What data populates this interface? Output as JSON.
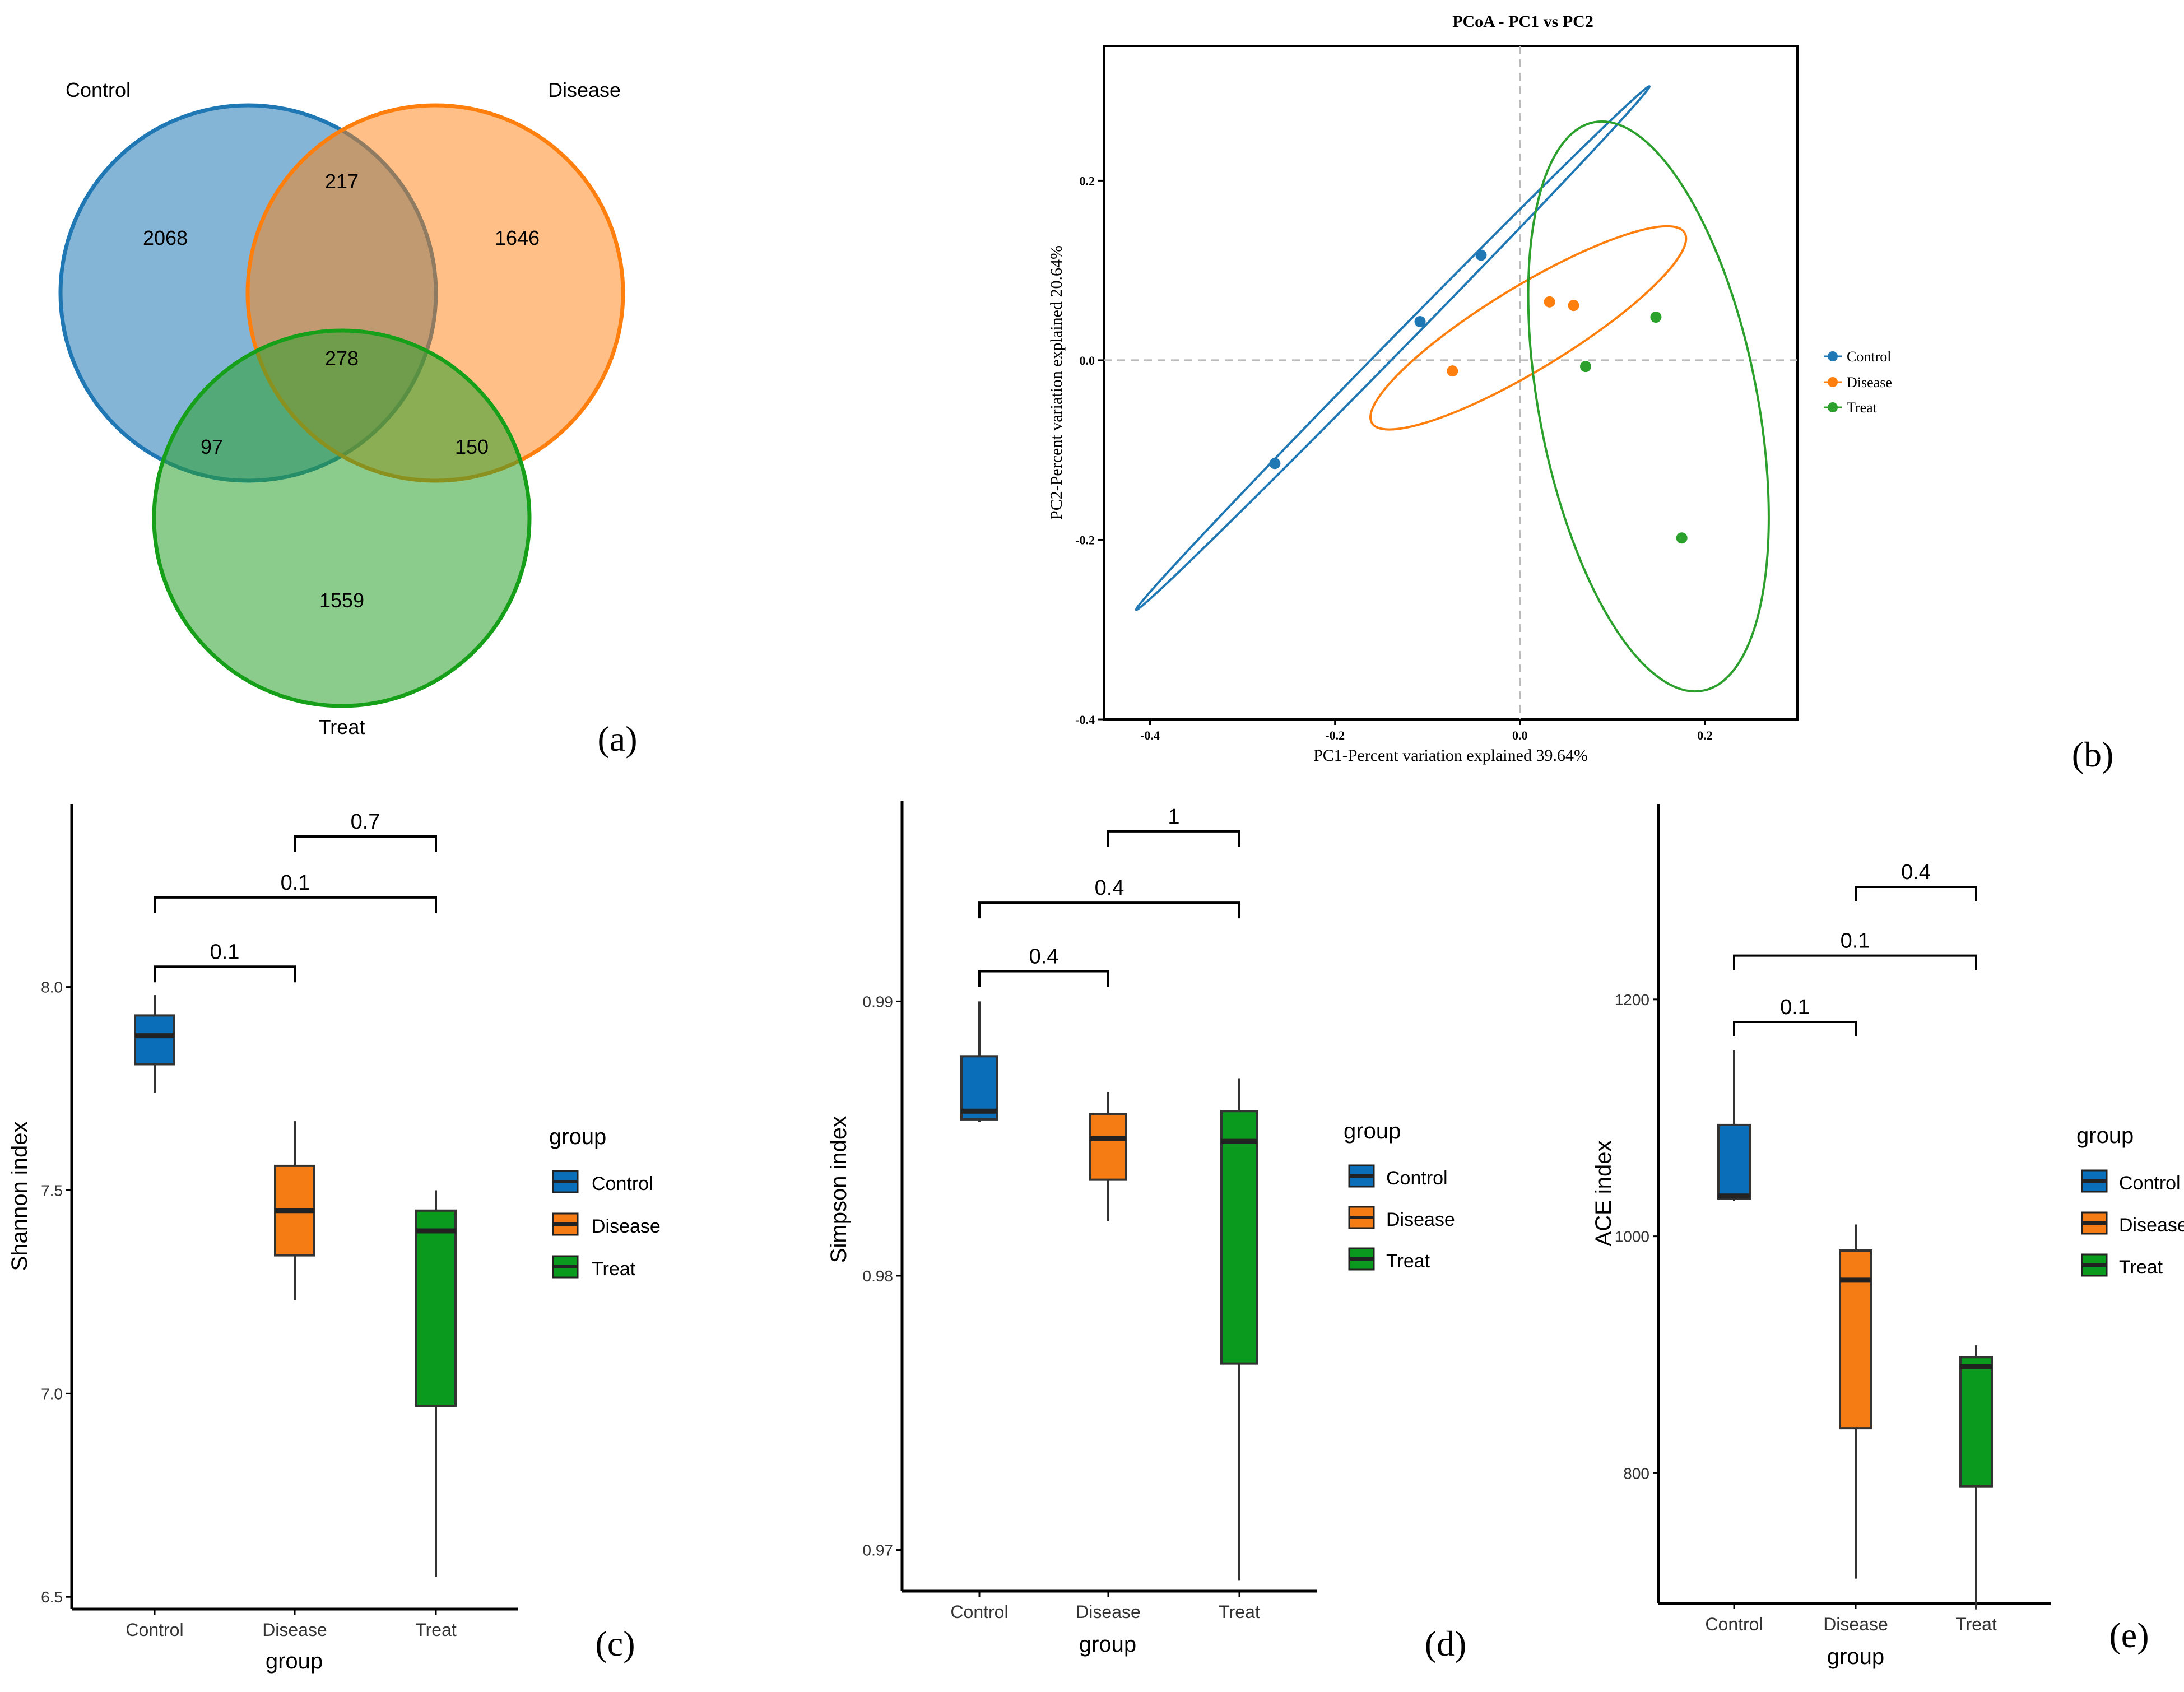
{
  "colors": {
    "control": "#1f77b4",
    "disease": "#ff7f0e",
    "treat": "#2ca02c",
    "box_control": "#0a6fb8",
    "box_disease": "#f57c14",
    "box_treat": "#0a9a1e"
  },
  "panel_labels": [
    "(a)",
    "(b)",
    "(c)",
    "(d)",
    "(e)"
  ],
  "chart_data": [
    {
      "type": "venn",
      "panel": "(a)",
      "sets": [
        "Control",
        "Disease",
        "Treat"
      ],
      "regions": {
        "control_only": 2068,
        "disease_only": 1646,
        "treat_only": 1559,
        "control_disease": 217,
        "control_treat": 97,
        "disease_treat": 150,
        "all_three": 278
      }
    },
    {
      "type": "scatter",
      "panel": "(b)",
      "title": "PCoA - PC1 vs PC2",
      "xlabel": "PC1-Percent variation explained 39.64%",
      "ylabel": "PC2-Percent variation explained 20.64%",
      "xlim": [
        -0.45,
        0.3
      ],
      "ylim": [
        -0.4,
        0.35
      ],
      "xticks": [
        -0.4,
        -0.2,
        0.0,
        0.2
      ],
      "yticks": [
        -0.4,
        -0.2,
        0.0,
        0.2
      ],
      "xtick_labels": [
        "-0.4",
        "-0.2",
        "0.0",
        "0.2"
      ],
      "ytick_labels": [
        "-0.4",
        "-0.2",
        "0.0",
        "0.2"
      ],
      "legend": [
        "Control",
        "Disease",
        "Treat"
      ],
      "series": [
        {
          "name": "Control",
          "points": [
            [
              -0.265,
              -0.115
            ],
            [
              -0.108,
              0.043
            ],
            [
              -0.042,
              0.117
            ]
          ]
        },
        {
          "name": "Disease",
          "points": [
            [
              -0.073,
              -0.012
            ],
            [
              0.032,
              0.065
            ],
            [
              0.058,
              0.061
            ]
          ]
        },
        {
          "name": "Treat",
          "points": [
            [
              0.071,
              -0.007
            ],
            [
              0.147,
              0.048
            ],
            [
              0.175,
              -0.198
            ]
          ]
        }
      ],
      "ellipses": [
        {
          "name": "Control",
          "from": [
            -0.415,
            -0.278
          ],
          "to": [
            0.14,
            0.305
          ],
          "half_width": 0.008
        },
        {
          "name": "Disease",
          "from": [
            -0.16,
            -0.07
          ],
          "to": [
            0.178,
            0.142
          ],
          "half_width": 0.045
        },
        {
          "name": "Treat",
          "from": [
            0.08,
            0.265
          ],
          "to": [
            0.198,
            -0.368
          ],
          "half_width": 0.118
        }
      ]
    },
    {
      "type": "box",
      "panel": "(c)",
      "ylabel": "Shannon index",
      "xlabel": "group",
      "categories": [
        "Control",
        "Disease",
        "Treat"
      ],
      "ylim": [
        6.47,
        8.45
      ],
      "yticks": [
        6.5,
        7.0,
        7.5,
        8.0
      ],
      "ytick_labels": [
        "6.5",
        "7.0",
        "7.5",
        "8.0"
      ],
      "legend_title": "group",
      "legend": [
        "Control",
        "Disease",
        "Treat"
      ],
      "boxes": [
        {
          "name": "Control",
          "min": 7.74,
          "q1": 7.81,
          "median": 7.88,
          "q3": 7.93,
          "max": 7.98
        },
        {
          "name": "Disease",
          "min": 7.23,
          "q1": 7.34,
          "median": 7.45,
          "q3": 7.56,
          "max": 7.67
        },
        {
          "name": "Treat",
          "min": 6.55,
          "q1": 6.97,
          "median": 7.4,
          "q3": 7.45,
          "max": 7.5
        }
      ],
      "comparisons": [
        {
          "pair": [
            "Control",
            "Disease"
          ],
          "label": "0.1",
          "y": 8.05
        },
        {
          "pair": [
            "Control",
            "Treat"
          ],
          "label": "0.1",
          "y": 8.22
        },
        {
          "pair": [
            "Disease",
            "Treat"
          ],
          "label": "0.7",
          "y": 8.37
        }
      ]
    },
    {
      "type": "box",
      "panel": "(d)",
      "ylabel": "Simpson index",
      "xlabel": "group",
      "categories": [
        "Control",
        "Disease",
        "Treat"
      ],
      "ylim": [
        0.9685,
        0.9973
      ],
      "yticks": [
        0.97,
        0.98,
        0.99
      ],
      "ytick_labels": [
        "0.97",
        "0.98",
        "0.99"
      ],
      "legend_title": "group",
      "legend": [
        "Control",
        "Disease",
        "Treat"
      ],
      "boxes": [
        {
          "name": "Control",
          "min": 0.9856,
          "q1": 0.9857,
          "median": 0.986,
          "q3": 0.988,
          "max": 0.99
        },
        {
          "name": "Disease",
          "min": 0.982,
          "q1": 0.9835,
          "median": 0.985,
          "q3": 0.9859,
          "max": 0.9867
        },
        {
          "name": "Treat",
          "min": 0.9689,
          "q1": 0.9768,
          "median": 0.9849,
          "q3": 0.986,
          "max": 0.9872
        }
      ],
      "comparisons": [
        {
          "pair": [
            "Control",
            "Disease"
          ],
          "label": "0.4",
          "y": 0.9911
        },
        {
          "pair": [
            "Control",
            "Treat"
          ],
          "label": "0.4",
          "y": 0.9936
        },
        {
          "pair": [
            "Disease",
            "Treat"
          ],
          "label": "1",
          "y": 0.9962
        }
      ]
    },
    {
      "type": "box",
      "panel": "(e)",
      "ylabel": "ACE index",
      "xlabel": "group",
      "categories": [
        "Control",
        "Disease",
        "Treat"
      ],
      "ylim": [
        690,
        1365
      ],
      "yticks": [
        800,
        1000,
        1200
      ],
      "ytick_labels": [
        "800",
        "1000",
        "1200"
      ],
      "legend_title": "group",
      "legend": [
        "Control",
        "Disease",
        "Treat"
      ],
      "boxes": [
        {
          "name": "Control",
          "min": 1030,
          "q1": 1032,
          "median": 1034,
          "q3": 1094,
          "max": 1157
        },
        {
          "name": "Disease",
          "min": 711,
          "q1": 838,
          "median": 963,
          "q3": 988,
          "max": 1010
        },
        {
          "name": "Treat",
          "min": 685,
          "q1": 789,
          "median": 890,
          "q3": 898,
          "max": 908
        }
      ],
      "comparisons": [
        {
          "pair": [
            "Control",
            "Disease"
          ],
          "label": "0.1",
          "y": 1181
        },
        {
          "pair": [
            "Control",
            "Treat"
          ],
          "label": "0.1",
          "y": 1237
        },
        {
          "pair": [
            "Disease",
            "Treat"
          ],
          "label": "0.4",
          "y": 1295
        }
      ]
    }
  ]
}
